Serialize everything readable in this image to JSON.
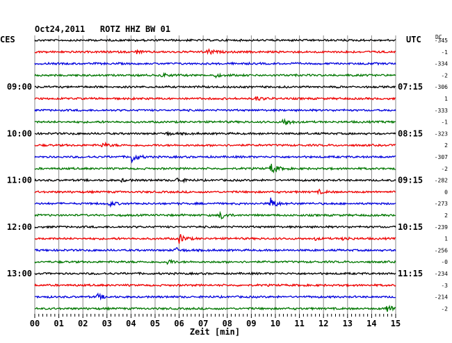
{
  "chart_data": {
    "type": "line",
    "title": "Oct24,2011   ROTZ HHZ BW 01",
    "left_label": "CES",
    "right_label": "UTC",
    "dc_label": "DC",
    "xlabel": "Zeit [min]",
    "xlim": [
      0,
      15
    ],
    "x_ticks": [
      "00",
      "01",
      "02",
      "03",
      "04",
      "05",
      "06",
      "07",
      "08",
      "09",
      "10",
      "11",
      "12",
      "13",
      "14",
      "15"
    ],
    "local_time_labels": [
      {
        "row": 4,
        "text": "09:00"
      },
      {
        "row": 8,
        "text": "10:00"
      },
      {
        "row": 12,
        "text": "11:00"
      },
      {
        "row": 16,
        "text": "12:00"
      },
      {
        "row": 20,
        "text": "13:00"
      }
    ],
    "utc_time_labels": [
      {
        "row": 4,
        "text": "07:15"
      },
      {
        "row": 8,
        "text": "08:15"
      },
      {
        "row": 12,
        "text": "09:15"
      },
      {
        "row": 16,
        "text": "10:15"
      },
      {
        "row": 20,
        "text": "11:15"
      }
    ],
    "trace_colors": [
      "#000000",
      "#ee0000",
      "#0000dd",
      "#007700"
    ],
    "traces": [
      {
        "dc": "-345",
        "events": []
      },
      {
        "dc": "-1",
        "events": [
          [
            7.2,
            0.5
          ],
          [
            4.2,
            0.3
          ]
        ]
      },
      {
        "dc": "-334",
        "events": []
      },
      {
        "dc": "-2",
        "events": [
          [
            5.3,
            0.3
          ],
          [
            7.5,
            0.3
          ]
        ]
      },
      {
        "dc": "-306",
        "events": []
      },
      {
        "dc": "1",
        "events": [
          [
            9.2,
            0.4
          ]
        ]
      },
      {
        "dc": "-333",
        "events": []
      },
      {
        "dc": "-1",
        "events": [
          [
            10.3,
            0.9
          ]
        ]
      },
      {
        "dc": "-323",
        "events": [
          [
            5.4,
            0.3
          ]
        ]
      },
      {
        "dc": "2",
        "events": [
          [
            2.8,
            0.4
          ]
        ]
      },
      {
        "dc": "-307",
        "events": [
          [
            4.0,
            1.0
          ]
        ]
      },
      {
        "dc": "-2",
        "events": [
          [
            9.8,
            1.0
          ]
        ]
      },
      {
        "dc": "-282",
        "events": [
          [
            5.9,
            0.5
          ],
          [
            3.6,
            0.2
          ]
        ]
      },
      {
        "dc": "0",
        "events": [
          [
            11.8,
            0.3
          ]
        ]
      },
      {
        "dc": "-273",
        "events": [
          [
            9.8,
            1.0
          ],
          [
            3.1,
            0.4
          ]
        ]
      },
      {
        "dc": "2",
        "events": [
          [
            7.7,
            0.8
          ]
        ]
      },
      {
        "dc": "-239",
        "events": []
      },
      {
        "dc": "1",
        "events": [
          [
            6.0,
            0.8
          ],
          [
            12.8,
            0.3
          ],
          [
            11.6,
            0.2
          ]
        ]
      },
      {
        "dc": "-256",
        "events": [
          [
            5.8,
            0.5
          ]
        ]
      },
      {
        "dc": "-0",
        "events": [
          [
            5.5,
            0.4
          ]
        ]
      },
      {
        "dc": "-234",
        "events": []
      },
      {
        "dc": "-3",
        "events": []
      },
      {
        "dc": "-214",
        "events": [
          [
            2.6,
            0.5
          ]
        ]
      },
      {
        "dc": "-2",
        "events": [
          [
            14.6,
            0.8
          ]
        ]
      }
    ]
  }
}
